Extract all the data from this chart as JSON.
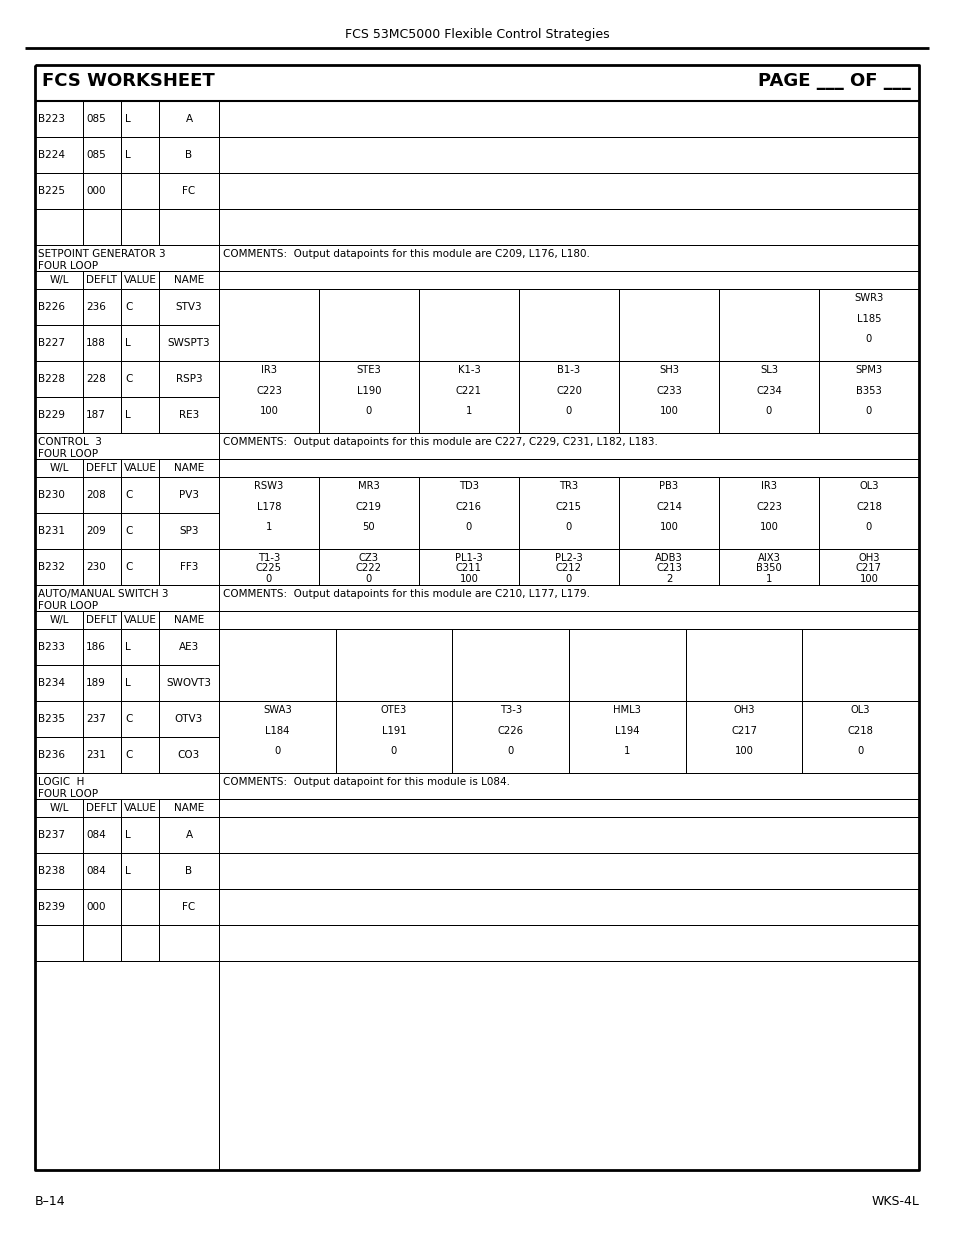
{
  "header_text": "FCS 53MC5000 Flexible Control Strategies",
  "title": "FCS WORKSHEET",
  "page_label": "PAGE ___ OF ___",
  "footer_left": "B–14",
  "footer_right": "WKS-4L",
  "bg_color": "#ffffff",
  "top_rows": [
    {
      "wl": "B223",
      "deflt": "085",
      "value": "L",
      "name": "A"
    },
    {
      "wl": "B224",
      "deflt": "085",
      "value": "L",
      "name": "B"
    },
    {
      "wl": "B225",
      "deflt": "000",
      "value": "",
      "name": "FC"
    },
    {
      "wl": "",
      "deflt": "",
      "value": "",
      "name": ""
    }
  ],
  "sections": [
    {
      "section_label1": "SETPOINT GENERATOR 3",
      "section_label2": "FOUR LOOP",
      "comment": "COMMENTS:  Output datapoints for this module are C209, L176, L180.",
      "n_extra": 7,
      "row_groups": [
        {
          "rows": [
            {
              "wl": "B226",
              "deflt": "236",
              "value": "C",
              "name": "STV3"
            },
            {
              "wl": "B227",
              "deflt": "188",
              "value": "L",
              "name": "SWSPT3"
            }
          ],
          "extra_cols": [
            "",
            "",
            "",
            "",
            "",
            "",
            "SWR3\nL185\n0"
          ]
        },
        {
          "rows": [
            {
              "wl": "B228",
              "deflt": "228",
              "value": "C",
              "name": "RSP3"
            },
            {
              "wl": "B229",
              "deflt": "187",
              "value": "L",
              "name": "RE3"
            }
          ],
          "extra_cols": [
            "IR3\nC223\n100",
            "STE3\nL190\n0",
            "K1-3\nC221\n1",
            "B1-3\nC220\n0",
            "SH3\nC233\n100",
            "SL3\nC234\n0",
            "SPM3\nB353\n0"
          ]
        }
      ]
    },
    {
      "section_label1": "CONTROL  3",
      "section_label2": "FOUR LOOP",
      "comment": "COMMENTS:  Output datapoints for this module are C227, C229, C231, L182, L183.",
      "n_extra": 7,
      "row_groups": [
        {
          "rows": [
            {
              "wl": "B230",
              "deflt": "208",
              "value": "C",
              "name": "PV3"
            },
            {
              "wl": "B231",
              "deflt": "209",
              "value": "C",
              "name": "SP3"
            }
          ],
          "extra_cols": [
            "RSW3\nL178\n1",
            "MR3\nC219\n50",
            "TD3\nC216\n0",
            "TR3\nC215\n0",
            "PB3\nC214\n100",
            "IR3\nC223\n100",
            "OL3\nC218\n0"
          ]
        },
        {
          "rows": [
            {
              "wl": "B232",
              "deflt": "230",
              "value": "C",
              "name": "FF3"
            }
          ],
          "extra_cols": [
            "T1-3\nC225\n0",
            "CZ3\nC222\n0",
            "PL1-3\nC211\n100",
            "PL2-3\nC212\n0",
            "ADB3\nC213\n2",
            "AIX3\nB350\n1",
            "OH3\nC217\n100"
          ]
        }
      ]
    },
    {
      "section_label1": "AUTO/MANUAL SWITCH 3",
      "section_label2": "FOUR LOOP",
      "comment": "COMMENTS:  Output datapoints for this module are C210, L177, L179.",
      "n_extra": 6,
      "row_groups": [
        {
          "rows": [
            {
              "wl": "B233",
              "deflt": "186",
              "value": "L",
              "name": "AE3"
            },
            {
              "wl": "B234",
              "deflt": "189",
              "value": "L",
              "name": "SWOVT3"
            }
          ],
          "extra_cols": [
            "",
            "",
            "",
            "",
            "",
            ""
          ]
        },
        {
          "rows": [
            {
              "wl": "B235",
              "deflt": "237",
              "value": "C",
              "name": "OTV3"
            },
            {
              "wl": "B236",
              "deflt": "231",
              "value": "C",
              "name": "CO3"
            }
          ],
          "extra_cols": [
            "SWA3\nL184\n0",
            "OTE3\nL191\n0",
            "T3-3\nC226\n0",
            "HML3\nL194\n1",
            "OH3\nC217\n100",
            "OL3\nC218\n0"
          ]
        }
      ]
    }
  ],
  "bottom_rows": [
    {
      "wl": "B237",
      "deflt": "084",
      "value": "L",
      "name": "A"
    },
    {
      "wl": "B238",
      "deflt": "084",
      "value": "L",
      "name": "B"
    },
    {
      "wl": "B239",
      "deflt": "000",
      "value": "",
      "name": "FC"
    },
    {
      "wl": "",
      "deflt": "",
      "value": "",
      "name": ""
    }
  ],
  "bottom_section_label1": "LOGIC  H",
  "bottom_section_label2": "FOUR LOOP",
  "bottom_comment": "COMMENTS:  Output datapoint for this module is L084."
}
